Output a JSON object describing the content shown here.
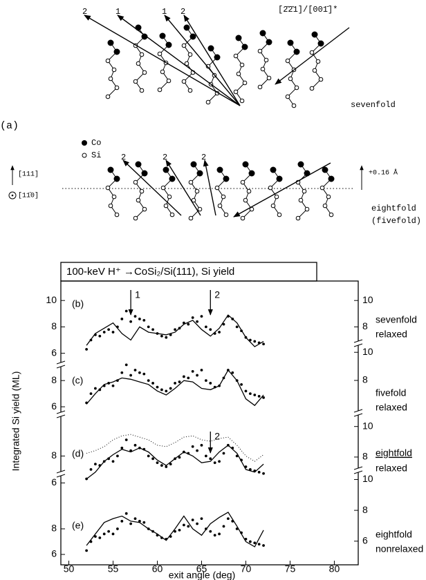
{
  "diagram": {
    "label": "(a)",
    "legend": [
      "Co",
      "Si"
    ],
    "sevenfold": {
      "arrow_labels": [
        "2",
        "1",
        "1",
        "2"
      ],
      "direction": "[2̄2̄1]/[001̄]*",
      "name": "sevenfold"
    },
    "eightfold": {
      "arrow_labels": [
        "2",
        "2",
        "2"
      ],
      "axis_up": "[111]",
      "axis_out": "[11̄0]",
      "shift": "+0.16 Å",
      "name": "eightfold",
      "alt_name": "(fivefold)"
    }
  },
  "figure": {
    "title": "100-keV H⁺ →CoSi₂/Si(111), Si yield",
    "ylabel": "Integrated Si yield (ML)",
    "xlabel": "exit angle (deg)"
  },
  "chart_data": [
    {
      "type": "line",
      "label": "(b)",
      "texts": [
        "sevenfold",
        "relaxed"
      ],
      "xlim": [
        49.1,
        82.7
      ],
      "ylim": [
        5.3,
        10.9
      ],
      "yticks": [
        10,
        8,
        6
      ],
      "y2lim": [
        5.3,
        10.9
      ],
      "y2ticks": [
        10,
        8
      ],
      "arrows": [
        {
          "x": 57,
          "label": "1"
        },
        {
          "x": 66,
          "label": "2"
        }
      ],
      "series": [
        {
          "style": "dots",
          "color": "#000000",
          "x": [
            52,
            52.5,
            53,
            53.5,
            54,
            54.5,
            55,
            55.5,
            56,
            56.5,
            57,
            57.5,
            58,
            58.5,
            59,
            59.5,
            60,
            60.5,
            61,
            61.5,
            62,
            62.5,
            63,
            63.5,
            64,
            64.5,
            65,
            65.5,
            66,
            66.5,
            67,
            67.5,
            68,
            68.5,
            69,
            69.5,
            70,
            70.5,
            71,
            71.5,
            72
          ],
          "values": [
            6.3,
            7.0,
            7.4,
            7.3,
            7.6,
            7.8,
            7.6,
            8.0,
            8.6,
            9.2,
            8.4,
            8.8,
            8.6,
            8.5,
            8.0,
            7.8,
            7.5,
            7.3,
            7.2,
            7.4,
            7.8,
            7.9,
            8.3,
            8.2,
            8.7,
            8.4,
            8.8,
            8.0,
            7.8,
            7.5,
            7.6,
            8.2,
            8.8,
            8.6,
            8.0,
            7.7,
            7.2,
            7.0,
            6.9,
            6.8,
            6.7
          ]
        },
        {
          "style": "solid",
          "color": "#000000",
          "x": [
            52,
            53,
            54,
            55,
            56,
            57,
            58,
            59,
            60,
            61,
            62,
            63,
            64,
            65,
            66,
            67,
            68,
            69,
            70,
            71,
            72
          ],
          "values": [
            6.6,
            7.5,
            7.9,
            8.3,
            7.5,
            7.0,
            8.0,
            7.6,
            7.5,
            7.4,
            7.6,
            8.2,
            8.5,
            7.8,
            7.3,
            7.9,
            8.9,
            8.3,
            7.2,
            6.5,
            6.9
          ]
        }
      ]
    },
    {
      "type": "line",
      "label": "(c)",
      "texts": [
        "fivefold",
        "relaxed"
      ],
      "xlim": [
        49.1,
        82.7
      ],
      "ylim": [
        4.9,
        10.8
      ],
      "yticks": [
        8,
        6
      ],
      "y2lim": [
        5.1,
        10.6
      ],
      "y2ticks": [
        10,
        8
      ],
      "series": [
        {
          "style": "dots",
          "color": "#000000",
          "x": [
            52,
            52.5,
            53,
            53.5,
            54,
            54.5,
            55,
            55.5,
            56,
            56.5,
            57,
            57.5,
            58,
            58.5,
            59,
            59.5,
            60,
            60.5,
            61,
            61.5,
            62,
            62.5,
            63,
            63.5,
            64,
            64.5,
            65,
            65.5,
            66,
            66.5,
            67,
            67.5,
            68,
            68.5,
            69,
            69.5,
            70,
            70.5,
            71,
            71.5,
            72
          ],
          "values": [
            6.3,
            7.0,
            7.4,
            7.3,
            7.6,
            7.8,
            7.6,
            8.0,
            8.6,
            9.2,
            8.4,
            8.8,
            8.6,
            8.5,
            8.0,
            7.8,
            7.5,
            7.3,
            7.2,
            7.4,
            7.8,
            7.9,
            8.3,
            8.2,
            8.7,
            8.4,
            8.8,
            8.0,
            7.8,
            7.5,
            7.6,
            8.2,
            8.8,
            8.6,
            8.0,
            7.7,
            7.2,
            7.0,
            6.9,
            6.8,
            6.7
          ]
        },
        {
          "style": "solid",
          "color": "#000000",
          "x": [
            52,
            53,
            54,
            55,
            56,
            57,
            58,
            59,
            60,
            61,
            62,
            63,
            64,
            65,
            66,
            67,
            68,
            69,
            70,
            71,
            72
          ],
          "values": [
            6.2,
            7.0,
            7.7,
            7.9,
            8.2,
            8.1,
            7.9,
            7.7,
            7.2,
            6.9,
            7.4,
            8.0,
            7.9,
            7.4,
            7.3,
            7.6,
            8.8,
            8.0,
            6.6,
            6.1,
            6.9
          ]
        }
      ]
    },
    {
      "type": "line",
      "label": "(d)",
      "texts": [
        "eightfold",
        "relaxed"
      ],
      "underline": true,
      "xlim": [
        49.1,
        82.7
      ],
      "ylim": [
        5.2,
        11.1
      ],
      "yticks": [
        8,
        6
      ],
      "y2lim": [
        5.6,
        10.8
      ],
      "y2ticks": [
        10,
        8
      ],
      "arrows": [
        {
          "x": 66,
          "label": "2"
        }
      ],
      "series": [
        {
          "style": "dots",
          "color": "#000000",
          "x": [
            52,
            52.5,
            53,
            53.5,
            54,
            54.5,
            55,
            55.5,
            56,
            56.5,
            57,
            57.5,
            58,
            58.5,
            59,
            59.5,
            60,
            60.5,
            61,
            61.5,
            62,
            62.5,
            63,
            63.5,
            64,
            64.5,
            65,
            65.5,
            66,
            66.5,
            67,
            67.5,
            68,
            68.5,
            69,
            69.5,
            70,
            70.5,
            71,
            71.5,
            72
          ],
          "values": [
            6.3,
            7.0,
            7.4,
            7.3,
            7.6,
            7.8,
            7.6,
            8.0,
            8.6,
            9.2,
            8.4,
            8.8,
            8.6,
            8.5,
            8.0,
            7.8,
            7.5,
            7.3,
            7.2,
            7.4,
            7.8,
            7.9,
            8.3,
            8.2,
            8.7,
            8.4,
            8.8,
            8.0,
            7.8,
            7.5,
            7.6,
            8.2,
            8.8,
            8.6,
            8.0,
            7.7,
            7.2,
            7.0,
            6.9,
            6.8,
            6.7
          ]
        },
        {
          "style": "solid",
          "color": "#000000",
          "x": [
            52,
            53,
            54,
            55,
            56,
            57,
            58,
            59,
            60,
            61,
            62,
            63,
            64,
            65,
            66,
            67,
            68,
            69,
            70,
            71,
            72
          ],
          "values": [
            6.3,
            6.8,
            7.6,
            8.1,
            8.5,
            8.3,
            8.6,
            8.3,
            7.7,
            7.3,
            7.8,
            8.3,
            8.0,
            7.5,
            7.6,
            8.3,
            8.8,
            8.2,
            7.0,
            6.8,
            7.4
          ]
        },
        {
          "style": "dotted",
          "color": "#000000",
          "x": [
            52,
            53,
            54,
            55,
            56,
            57,
            58,
            59,
            60,
            61,
            62,
            63,
            64,
            65,
            66,
            67,
            68,
            69,
            70,
            71,
            72
          ],
          "values": [
            8.2,
            8.4,
            8.7,
            9.2,
            9.5,
            9.6,
            9.4,
            9.2,
            8.8,
            8.7,
            9.0,
            9.4,
            9.5,
            9.2,
            9.1,
            9.3,
            9.4,
            8.8,
            8.0,
            7.6,
            8.1
          ]
        }
      ]
    },
    {
      "type": "line",
      "label": "(e)",
      "texts": [
        "eightfold",
        "nonrelaxed"
      ],
      "xlim": [
        49.1,
        82.7
      ],
      "ylim": [
        5.35,
        12.1
      ],
      "yticks": [
        8,
        6
      ],
      "y2lim": [
        4.6,
        10.2
      ],
      "y2ticks": [
        10,
        8,
        6
      ],
      "xticks": [
        50,
        55,
        60,
        65,
        70,
        75,
        80
      ],
      "series": [
        {
          "style": "dots",
          "color": "#000000",
          "x": [
            52,
            52.5,
            53,
            53.5,
            54,
            54.5,
            55,
            55.5,
            56,
            56.5,
            57,
            57.5,
            58,
            58.5,
            59,
            59.5,
            60,
            60.5,
            61,
            61.5,
            62,
            62.5,
            63,
            63.5,
            64,
            64.5,
            65,
            65.5,
            66,
            66.5,
            67,
            67.5,
            68,
            68.5,
            69,
            69.5,
            70,
            70.5,
            71,
            71.5,
            72
          ],
          "values": [
            6.3,
            7.0,
            7.4,
            7.3,
            7.6,
            7.8,
            7.6,
            8.0,
            8.6,
            9.2,
            8.4,
            8.8,
            8.6,
            8.5,
            8.0,
            7.8,
            7.5,
            7.3,
            7.2,
            7.4,
            7.8,
            7.9,
            8.3,
            8.2,
            8.7,
            8.4,
            8.8,
            8.0,
            7.8,
            7.5,
            7.6,
            8.2,
            8.8,
            8.6,
            8.0,
            7.7,
            7.2,
            7.0,
            6.9,
            6.8,
            6.7
          ]
        },
        {
          "style": "solid",
          "color": "#000000",
          "x": [
            52,
            53,
            54,
            55,
            56,
            57,
            58,
            59,
            60,
            61,
            62,
            63,
            64,
            65,
            66,
            67,
            68,
            69,
            70,
            71,
            72
          ],
          "values": [
            6.7,
            7.6,
            8.5,
            8.8,
            9.0,
            8.6,
            8.5,
            8.0,
            7.6,
            7.1,
            8.0,
            9.0,
            8.0,
            7.5,
            8.4,
            8.9,
            9.3,
            8.2,
            7.0,
            6.6,
            7.9
          ]
        }
      ]
    }
  ]
}
